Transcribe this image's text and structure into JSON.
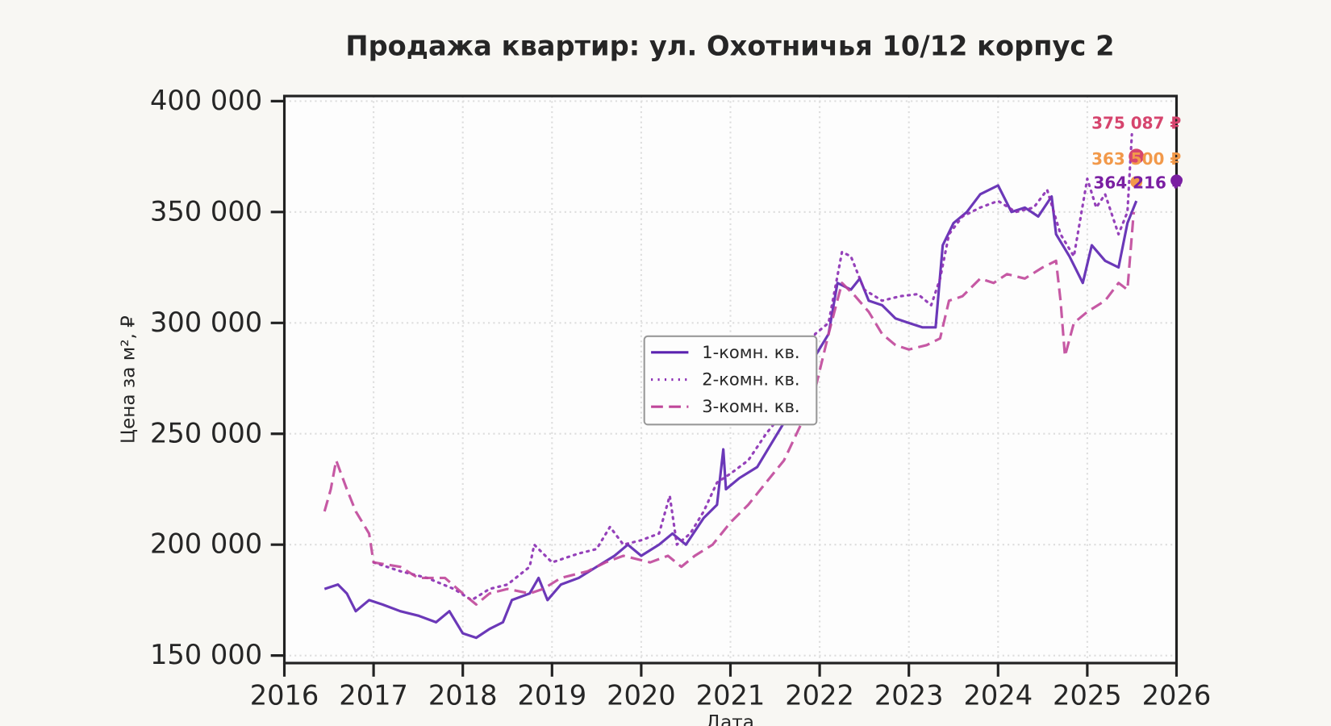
{
  "chart_data": {
    "type": "line",
    "title": "Продажа квартир: ул. Охотничья 10/12 корпус 2",
    "x_label": "Дата",
    "y_label": "Цена за м², ₽",
    "xlim": [
      2016,
      2026
    ],
    "xticks": [
      2016,
      2017,
      2018,
      2019,
      2020,
      2021,
      2022,
      2023,
      2024,
      2025,
      2026
    ],
    "ylim": [
      146600,
      402300
    ],
    "yticks": [
      {
        "value": 150000,
        "label": "150 000"
      },
      {
        "value": 200000,
        "label": "200 000"
      },
      {
        "value": 250000,
        "label": "250 000"
      },
      {
        "value": 300000,
        "label": "300 000"
      },
      {
        "value": 350000,
        "label": "350 000"
      },
      {
        "value": 400000,
        "label": "400 000"
      }
    ],
    "grid": true,
    "legend": "center",
    "series": [
      {
        "name": "1-комн. кв.",
        "color": "#5b22b0",
        "dash": "solid",
        "x": [
          2016.45,
          2016.6,
          2016.7,
          2016.8,
          2016.95,
          2017.1,
          2017.3,
          2017.5,
          2017.7,
          2017.85,
          2018.0,
          2018.15,
          2018.3,
          2018.45,
          2018.55,
          2018.75,
          2018.85,
          2018.95,
          2019.1,
          2019.3,
          2019.5,
          2019.7,
          2019.85,
          2020.0,
          2020.2,
          2020.35,
          2020.5,
          2020.7,
          2020.85,
          2020.92,
          2020.95,
          2021.1,
          2021.3,
          2021.45,
          2021.6,
          2021.8,
          2021.95,
          2022.1,
          2022.2,
          2022.35,
          2022.45,
          2022.55,
          2022.7,
          2022.85,
          2023.0,
          2023.15,
          2023.3,
          2023.38,
          2023.5,
          2023.65,
          2023.8,
          2024.0,
          2024.15,
          2024.3,
          2024.45,
          2024.6,
          2024.65,
          2024.8,
          2024.95,
          2025.05,
          2025.2,
          2025.35,
          2025.45,
          2025.55
        ],
        "values": [
          180000,
          182000,
          178000,
          170000,
          175000,
          173000,
          170000,
          168000,
          165000,
          170000,
          160000,
          158000,
          162000,
          165000,
          175000,
          178000,
          185000,
          175000,
          182000,
          185000,
          190000,
          195000,
          200000,
          195000,
          200000,
          205000,
          200000,
          212000,
          218000,
          243000,
          225000,
          230000,
          235000,
          245000,
          255000,
          265000,
          285000,
          295000,
          318000,
          315000,
          320000,
          310000,
          308000,
          302000,
          300000,
          298000,
          298000,
          335000,
          345000,
          350000,
          358000,
          362000,
          350000,
          352000,
          348000,
          357000,
          340000,
          330000,
          318000,
          335000,
          328000,
          325000,
          345000,
          355000
        ]
      },
      {
        "name": "2-комн. кв.",
        "color": "#8a2cb3",
        "dash": "dotted",
        "x": [
          2017.0,
          2017.3,
          2017.6,
          2017.9,
          2018.1,
          2018.3,
          2018.5,
          2018.75,
          2018.8,
          2019.0,
          2019.3,
          2019.5,
          2019.65,
          2019.8,
          2020.0,
          2020.2,
          2020.32,
          2020.4,
          2020.55,
          2020.7,
          2020.85,
          2021.0,
          2021.2,
          2021.4,
          2021.6,
          2021.8,
          2021.95,
          2022.1,
          2022.25,
          2022.35,
          2022.5,
          2022.7,
          2022.9,
          2023.1,
          2023.25,
          2023.35,
          2023.45,
          2023.6,
          2023.8,
          2024.0,
          2024.2,
          2024.4,
          2024.55,
          2024.7,
          2024.85,
          2025.0,
          2025.1,
          2025.2,
          2025.35,
          2025.45,
          2025.5
        ],
        "values": [
          192000,
          188000,
          185000,
          180000,
          175000,
          180000,
          182000,
          190000,
          200000,
          192000,
          196000,
          198000,
          208000,
          200000,
          202000,
          205000,
          222000,
          200000,
          205000,
          215000,
          228000,
          232000,
          238000,
          250000,
          260000,
          275000,
          295000,
          300000,
          332000,
          330000,
          315000,
          310000,
          312000,
          313000,
          308000,
          320000,
          340000,
          348000,
          352000,
          355000,
          350000,
          352000,
          360000,
          340000,
          330000,
          365000,
          352000,
          358000,
          340000,
          350000,
          385000
        ]
      },
      {
        "name": "3-комн. кв.",
        "color": "#c0479a",
        "dash": "dashed",
        "x": [
          2016.45,
          2016.52,
          2016.58,
          2016.7,
          2016.8,
          2016.95,
          2017.0,
          2017.3,
          2017.5,
          2017.8,
          2018.0,
          2018.15,
          2018.3,
          2018.5,
          2018.75,
          2018.9,
          2019.1,
          2019.4,
          2019.6,
          2019.8,
          2020.1,
          2020.3,
          2020.45,
          2020.6,
          2020.8,
          2021.0,
          2021.2,
          2021.4,
          2021.6,
          2021.8,
          2021.95,
          2022.1,
          2022.25,
          2022.4,
          2022.55,
          2022.7,
          2022.85,
          2023.0,
          2023.2,
          2023.35,
          2023.45,
          2023.6,
          2023.8,
          2023.95,
          2024.1,
          2024.3,
          2024.5,
          2024.65,
          2024.7,
          2024.75,
          2024.85,
          2025.0,
          2025.2,
          2025.35,
          2025.45,
          2025.52
        ],
        "values": [
          215000,
          225000,
          238000,
          225000,
          215000,
          205000,
          192000,
          190000,
          185000,
          185000,
          178000,
          173000,
          178000,
          180000,
          178000,
          180000,
          185000,
          188000,
          192000,
          195000,
          192000,
          195000,
          190000,
          195000,
          200000,
          210000,
          218000,
          228000,
          238000,
          255000,
          270000,
          295000,
          318000,
          312000,
          305000,
          295000,
          290000,
          288000,
          290000,
          293000,
          310000,
          312000,
          320000,
          318000,
          322000,
          320000,
          325000,
          328000,
          310000,
          285000,
          300000,
          305000,
          310000,
          318000,
          315000,
          350000
        ]
      }
    ],
    "annotations": [
      {
        "x": 2025.55,
        "value": 375087,
        "label": "375 087 ₽",
        "color": "#d6456e"
      },
      {
        "x": 2025.55,
        "value": 363500,
        "label": "363 500 ₽",
        "color": "#f2994a"
      },
      {
        "x": 2026,
        "value": 364216,
        "label": "364 216 ₽",
        "color": "#7a1fa2"
      }
    ]
  }
}
